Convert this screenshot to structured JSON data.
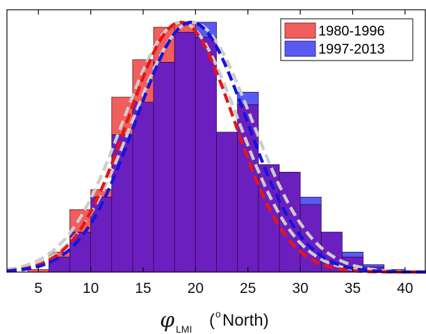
{
  "chart_data": {
    "type": "bar",
    "subtype": "overlapping histogram with fitted normal curves",
    "xlabel": {
      "symbol": "φ",
      "subscript": "LMI",
      "unit_open": "(",
      "unit_sup": "o",
      "unit_text": "North)"
    },
    "xlim": [
      2,
      42
    ],
    "ylim": [
      0,
      0.105
    ],
    "x_ticks": [
      5,
      10,
      15,
      20,
      25,
      30,
      35,
      40
    ],
    "y_ticks_labeled": false,
    "bin_edges": [
      4,
      6,
      8,
      10,
      12,
      14,
      16,
      18,
      20,
      22,
      24,
      26,
      28,
      30,
      32,
      34,
      36,
      38,
      40,
      42
    ],
    "series": [
      {
        "name": "1980-1996",
        "color": "#ff3333",
        "alpha": 0.7,
        "values": [
          0.001,
          0.008,
          0.025,
          0.033,
          0.07,
          0.085,
          0.098,
          0.1,
          0.094,
          0.056,
          0.067,
          0.043,
          0.04,
          0.027,
          0.016,
          0.006,
          0.002,
          0.001,
          0
        ]
      },
      {
        "name": "1997-2013",
        "color": "#3333ff",
        "alpha": 0.7,
        "values": [
          0,
          0.006,
          0.016,
          0.03,
          0.055,
          0.068,
          0.084,
          0.096,
          0.1,
          0.056,
          0.072,
          0.043,
          0.04,
          0.03,
          0.016,
          0.008,
          0.003,
          0.001,
          0
        ]
      }
    ],
    "fit_curves": [
      {
        "series": "1980-1996",
        "mean": 18.6,
        "sd": 5.1,
        "peak": 0.1,
        "color": "#e81414",
        "style": "dashed"
      },
      {
        "series": "1997-2013",
        "mean": 19.6,
        "sd": 5.3,
        "peak": 0.1,
        "color": "#1414e0",
        "style": "dashed"
      },
      {
        "series": "combined-light",
        "mean": 18.6,
        "sd": 5.5,
        "peak": 0.1,
        "color": "#cccccc",
        "style": "dashed"
      },
      {
        "series": "combined-light",
        "mean": 19.7,
        "sd": 5.7,
        "peak": 0.1,
        "color": "#cccccc",
        "style": "dashed"
      }
    ],
    "overlap_color": "#6c1fbf",
    "legend_position": "top-right",
    "grid": false
  }
}
